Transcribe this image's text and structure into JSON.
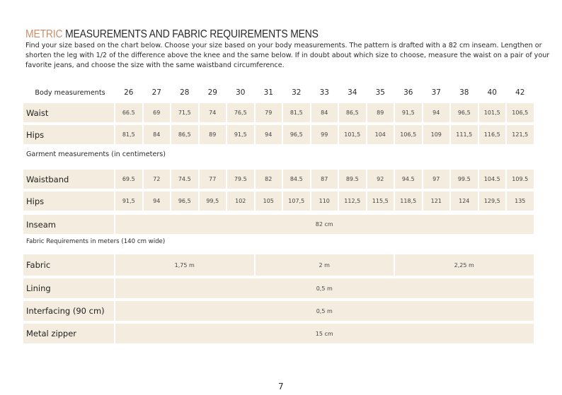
{
  "title": {
    "accent": "METRIC",
    "rest": " MEASUREMENTS AND FABRIC REQUIREMENTS MENS"
  },
  "intro": "Find your size based on the chart below. Choose your size based on your body measurements. The pattern is drafted with a 82 cm inseam. Lengthen or shorten the leg with 1/2 of the difference above the knee and the same below. If in doubt about which size to choose, measure the waist on a pair of your favorite jeans, and choose the size with the same waistband circumference.",
  "accent_color": "#c98f6b",
  "body": {
    "label": "Body measurements",
    "sizes": [
      "26",
      "27",
      "28",
      "29",
      "30",
      "31",
      "32",
      "33",
      "34",
      "35",
      "36",
      "37",
      "38",
      "40",
      "42"
    ],
    "rows": [
      {
        "label": "Waist",
        "values": [
          "66.5",
          "69",
          "71,5",
          "74",
          "76,5",
          "79",
          "81,5",
          "84",
          "86,5",
          "89",
          "91,5",
          "94",
          "96,5",
          "101,5",
          "106,5"
        ]
      },
      {
        "label": "Hips",
        "values": [
          "81,5",
          "84",
          "86,5",
          "89",
          "91,5",
          "94",
          "96,5",
          "99",
          "101,5",
          "104",
          "106,5",
          "109",
          "111,5",
          "116,5",
          "121,5"
        ]
      }
    ]
  },
  "garment": {
    "label": "Garment measurements (in centimeters)",
    "rows": [
      {
        "label": "Waistband",
        "values": [
          "69.5",
          "72",
          "74.5",
          "77",
          "79.5",
          "82",
          "84.5",
          "87",
          "89.5",
          "92",
          "94.5",
          "97",
          "99.5",
          "104.5",
          "109.5"
        ]
      },
      {
        "label": "Hips",
        "values": [
          "91,5",
          "94",
          "96,5",
          "99,5",
          "102",
          "105",
          "107,5",
          "110",
          "112,5",
          "115,5",
          "118,5",
          "121",
          "124",
          "129,5",
          "135"
        ]
      }
    ],
    "inseam": {
      "label": "Inseam",
      "value": "82 cm"
    }
  },
  "fabric": {
    "label": "Fabric Requirements in meters (140 cm wide)",
    "fabric_row": {
      "label": "Fabric",
      "values": [
        "1,75 m",
        "2 m",
        "2,25 m"
      ]
    },
    "rows": [
      {
        "label": "Lining",
        "value": "0,5 m"
      },
      {
        "label": "Interfacing (90 cm)",
        "value": "0,5 m"
      },
      {
        "label": "Metal zipper",
        "value": "15 cm"
      }
    ]
  },
  "page_number": "7"
}
